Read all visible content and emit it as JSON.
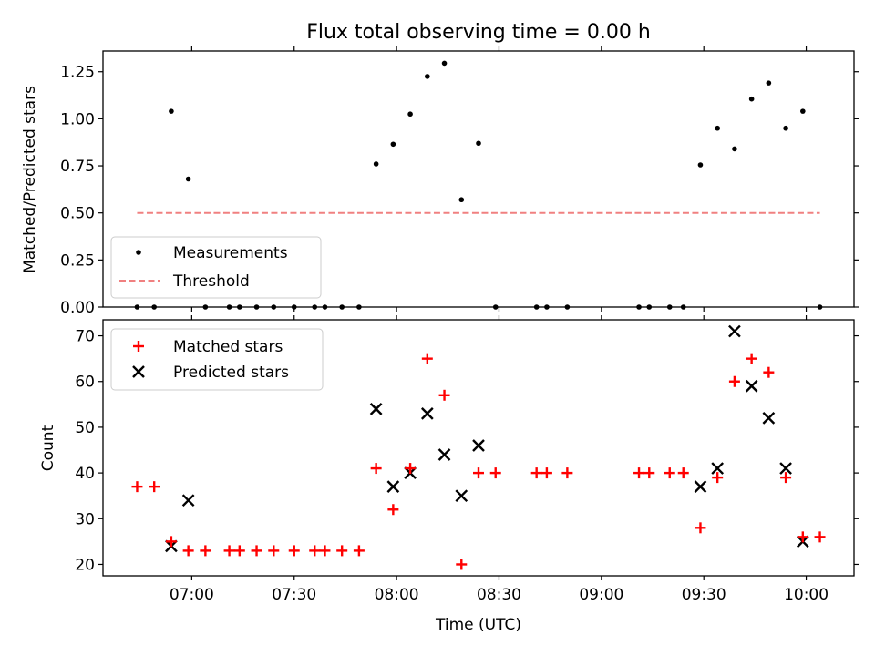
{
  "title": "Flux total observing time = 0.00 h",
  "colors": {
    "matched": "#ff0000",
    "predicted": "#000000",
    "threshold": "#f08080",
    "measurement": "#000000"
  },
  "chart_data": [
    {
      "type": "scatter",
      "ylabel": "Matched/Predicted stars",
      "ylim": [
        0,
        1.36
      ],
      "yticks": [
        "0.00",
        "0.25",
        "0.50",
        "0.75",
        "1.00",
        "1.25"
      ],
      "legend": {
        "placement": "lower-left",
        "measurements_label": "Measurements",
        "threshold_label": "Threshold"
      },
      "xlim": [
        "06:34",
        "10:14"
      ],
      "xticks": [
        "07:00",
        "07:30",
        "08:00",
        "08:30",
        "09:00",
        "09:30",
        "10:00"
      ],
      "measurements": [
        [
          "06:44",
          0
        ],
        [
          "06:49",
          0
        ],
        [
          "06:54",
          1.04
        ],
        [
          "06:59",
          0.68
        ],
        [
          "07:04",
          0
        ],
        [
          "07:11",
          0
        ],
        [
          "07:14",
          0
        ],
        [
          "07:19",
          0
        ],
        [
          "07:24",
          0
        ],
        [
          "07:30",
          0
        ],
        [
          "07:36",
          0
        ],
        [
          "07:39",
          0
        ],
        [
          "07:44",
          0
        ],
        [
          "07:49",
          0
        ],
        [
          "07:54",
          0.76
        ],
        [
          "07:59",
          0.865
        ],
        [
          "08:04",
          1.025
        ],
        [
          "08:09",
          1.225
        ],
        [
          "08:14",
          1.295
        ],
        [
          "08:19",
          0.57
        ],
        [
          "08:24",
          0.87
        ],
        [
          "08:29",
          0
        ],
        [
          "08:41",
          0
        ],
        [
          "08:44",
          0
        ],
        [
          "08:50",
          0
        ],
        [
          "09:11",
          0
        ],
        [
          "09:14",
          0
        ],
        [
          "09:20",
          0
        ],
        [
          "09:24",
          0
        ],
        [
          "09:29",
          0.755
        ],
        [
          "09:34",
          0.95
        ],
        [
          "09:39",
          0.84
        ],
        [
          "09:44",
          1.105
        ],
        [
          "09:49",
          1.19
        ],
        [
          "09:54",
          0.95
        ],
        [
          "09:59",
          1.04
        ],
        [
          "10:04",
          0
        ]
      ],
      "threshold": {
        "value": 0.5,
        "from": "06:44",
        "to": "10:04"
      }
    },
    {
      "type": "scatter",
      "ylabel": "Count",
      "xlabel": "Time (UTC)",
      "ylim": [
        17.5,
        73.5
      ],
      "yticks": [
        "20",
        "30",
        "40",
        "50",
        "60",
        "70"
      ],
      "legend": {
        "placement": "upper-left",
        "matched_label": "Matched stars",
        "predicted_label": "Predicted stars"
      },
      "xlim": [
        "06:34",
        "10:14"
      ],
      "xticks": [
        "07:00",
        "07:30",
        "08:00",
        "08:30",
        "09:00",
        "09:30",
        "10:00"
      ],
      "matched": [
        [
          "06:44",
          37
        ],
        [
          "06:49",
          37
        ],
        [
          "06:54",
          25
        ],
        [
          "06:59",
          23
        ],
        [
          "07:04",
          23
        ],
        [
          "07:11",
          23
        ],
        [
          "07:14",
          23
        ],
        [
          "07:19",
          23
        ],
        [
          "07:24",
          23
        ],
        [
          "07:30",
          23
        ],
        [
          "07:36",
          23
        ],
        [
          "07:39",
          23
        ],
        [
          "07:44",
          23
        ],
        [
          "07:49",
          23
        ],
        [
          "07:54",
          41
        ],
        [
          "07:59",
          32
        ],
        [
          "08:04",
          41
        ],
        [
          "08:09",
          65
        ],
        [
          "08:14",
          57
        ],
        [
          "08:19",
          20
        ],
        [
          "08:24",
          40
        ],
        [
          "08:29",
          40
        ],
        [
          "08:41",
          40
        ],
        [
          "08:44",
          40
        ],
        [
          "08:50",
          40
        ],
        [
          "09:11",
          40
        ],
        [
          "09:14",
          40
        ],
        [
          "09:20",
          40
        ],
        [
          "09:24",
          40
        ],
        [
          "09:29",
          28
        ],
        [
          "09:34",
          39
        ],
        [
          "09:39",
          60
        ],
        [
          "09:44",
          65
        ],
        [
          "09:49",
          62
        ],
        [
          "09:54",
          39
        ],
        [
          "09:59",
          26
        ],
        [
          "10:04",
          26
        ]
      ],
      "predicted": [
        [
          "06:54",
          24
        ],
        [
          "06:59",
          34
        ],
        [
          "07:54",
          54
        ],
        [
          "07:59",
          37
        ],
        [
          "08:04",
          40
        ],
        [
          "08:09",
          53
        ],
        [
          "08:14",
          44
        ],
        [
          "08:19",
          35
        ],
        [
          "08:24",
          46
        ],
        [
          "09:29",
          37
        ],
        [
          "09:34",
          41
        ],
        [
          "09:39",
          71
        ],
        [
          "09:44",
          59
        ],
        [
          "09:49",
          52
        ],
        [
          "09:54",
          41
        ],
        [
          "09:59",
          25
        ]
      ]
    }
  ]
}
